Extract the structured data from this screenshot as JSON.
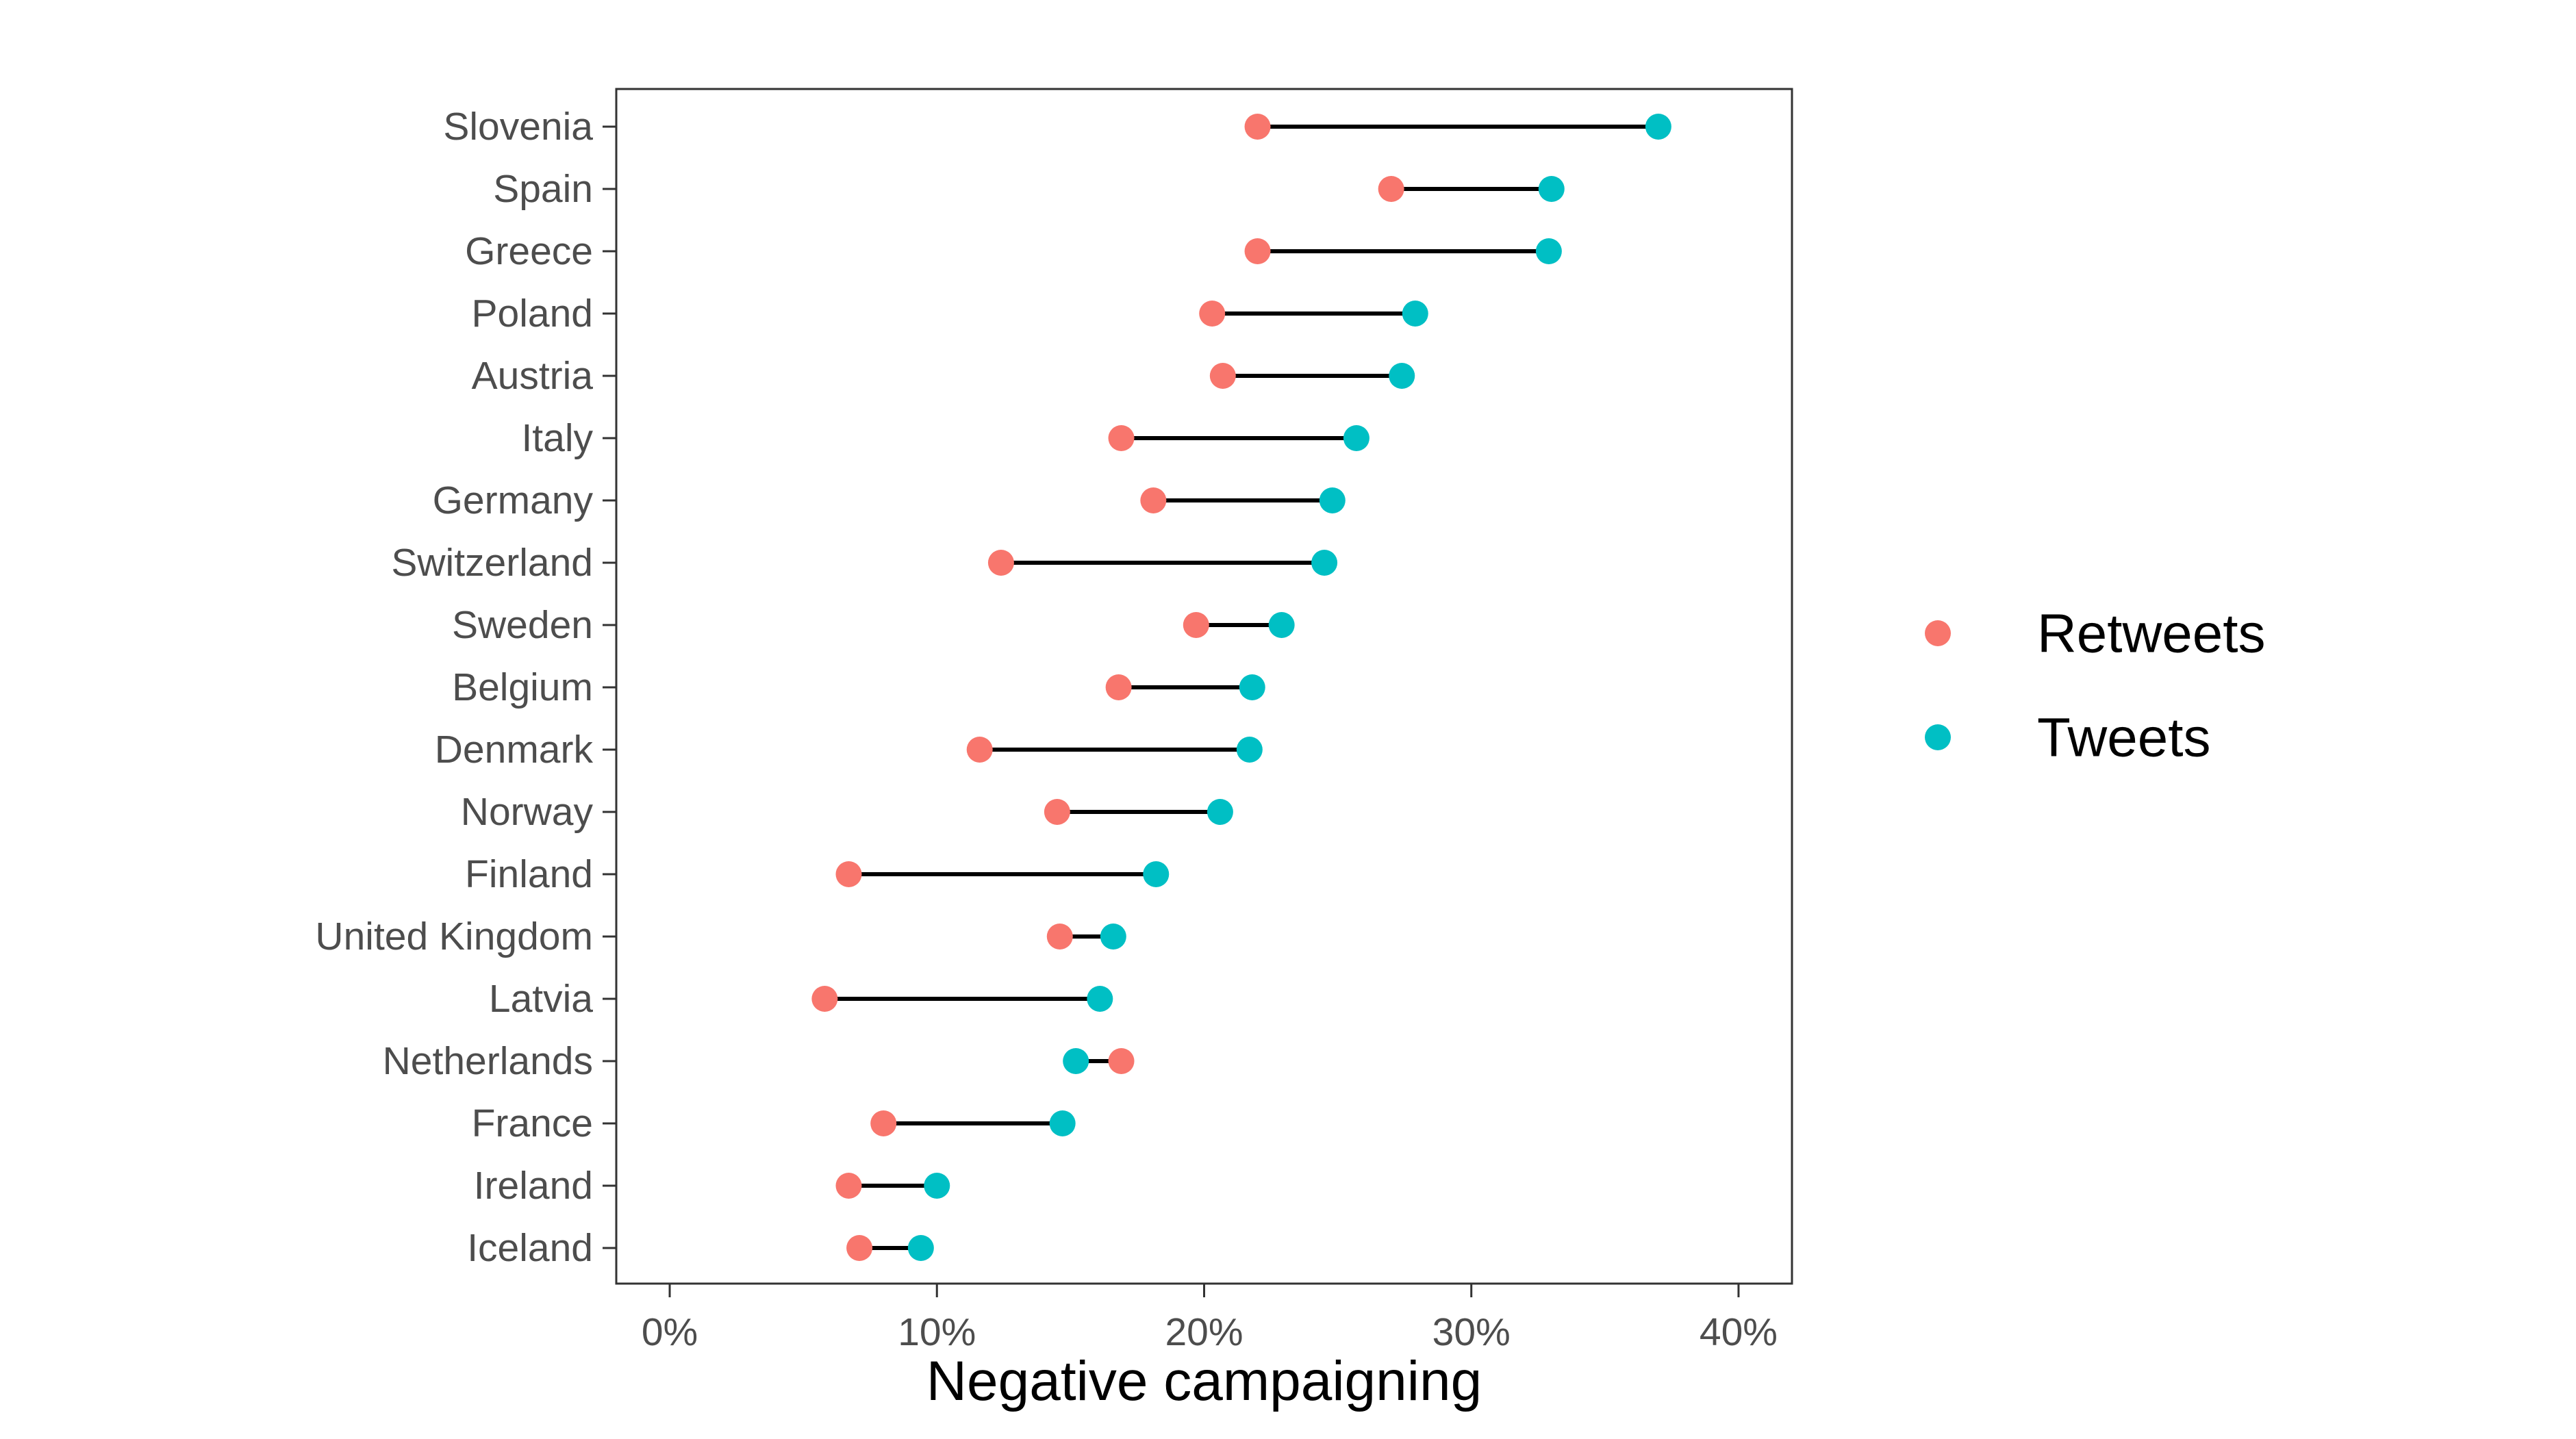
{
  "chart_data": {
    "type": "dumbbell",
    "title": "",
    "xlabel": "Negative campaigning",
    "ylabel": "",
    "xlim": [
      -0.02,
      0.42
    ],
    "x_ticks": [
      0,
      0.1,
      0.2,
      0.3,
      0.4
    ],
    "x_tick_labels": [
      "0%",
      "10%",
      "20%",
      "30%",
      "40%"
    ],
    "grid": false,
    "legend_position": "right",
    "colors": {
      "Retweets": "#F8766D",
      "Tweets": "#00BFC4"
    },
    "categories": [
      "Slovenia",
      "Spain",
      "Greece",
      "Poland",
      "Austria",
      "Italy",
      "Germany",
      "Switzerland",
      "Sweden",
      "Belgium",
      "Denmark",
      "Norway",
      "Finland",
      "United Kingdom",
      "Latvia",
      "Netherlands",
      "France",
      "Ireland",
      "Iceland"
    ],
    "series": [
      {
        "name": "Retweets",
        "values": [
          0.22,
          0.27,
          0.22,
          0.203,
          0.207,
          0.169,
          0.181,
          0.124,
          0.197,
          0.168,
          0.116,
          0.145,
          0.067,
          0.146,
          0.058,
          0.169,
          0.08,
          0.067,
          0.071
        ]
      },
      {
        "name": "Tweets",
        "values": [
          0.37,
          0.33,
          0.329,
          0.279,
          0.274,
          0.257,
          0.248,
          0.245,
          0.229,
          0.218,
          0.217,
          0.206,
          0.182,
          0.166,
          0.161,
          0.152,
          0.147,
          0.1,
          0.094
        ]
      }
    ]
  }
}
